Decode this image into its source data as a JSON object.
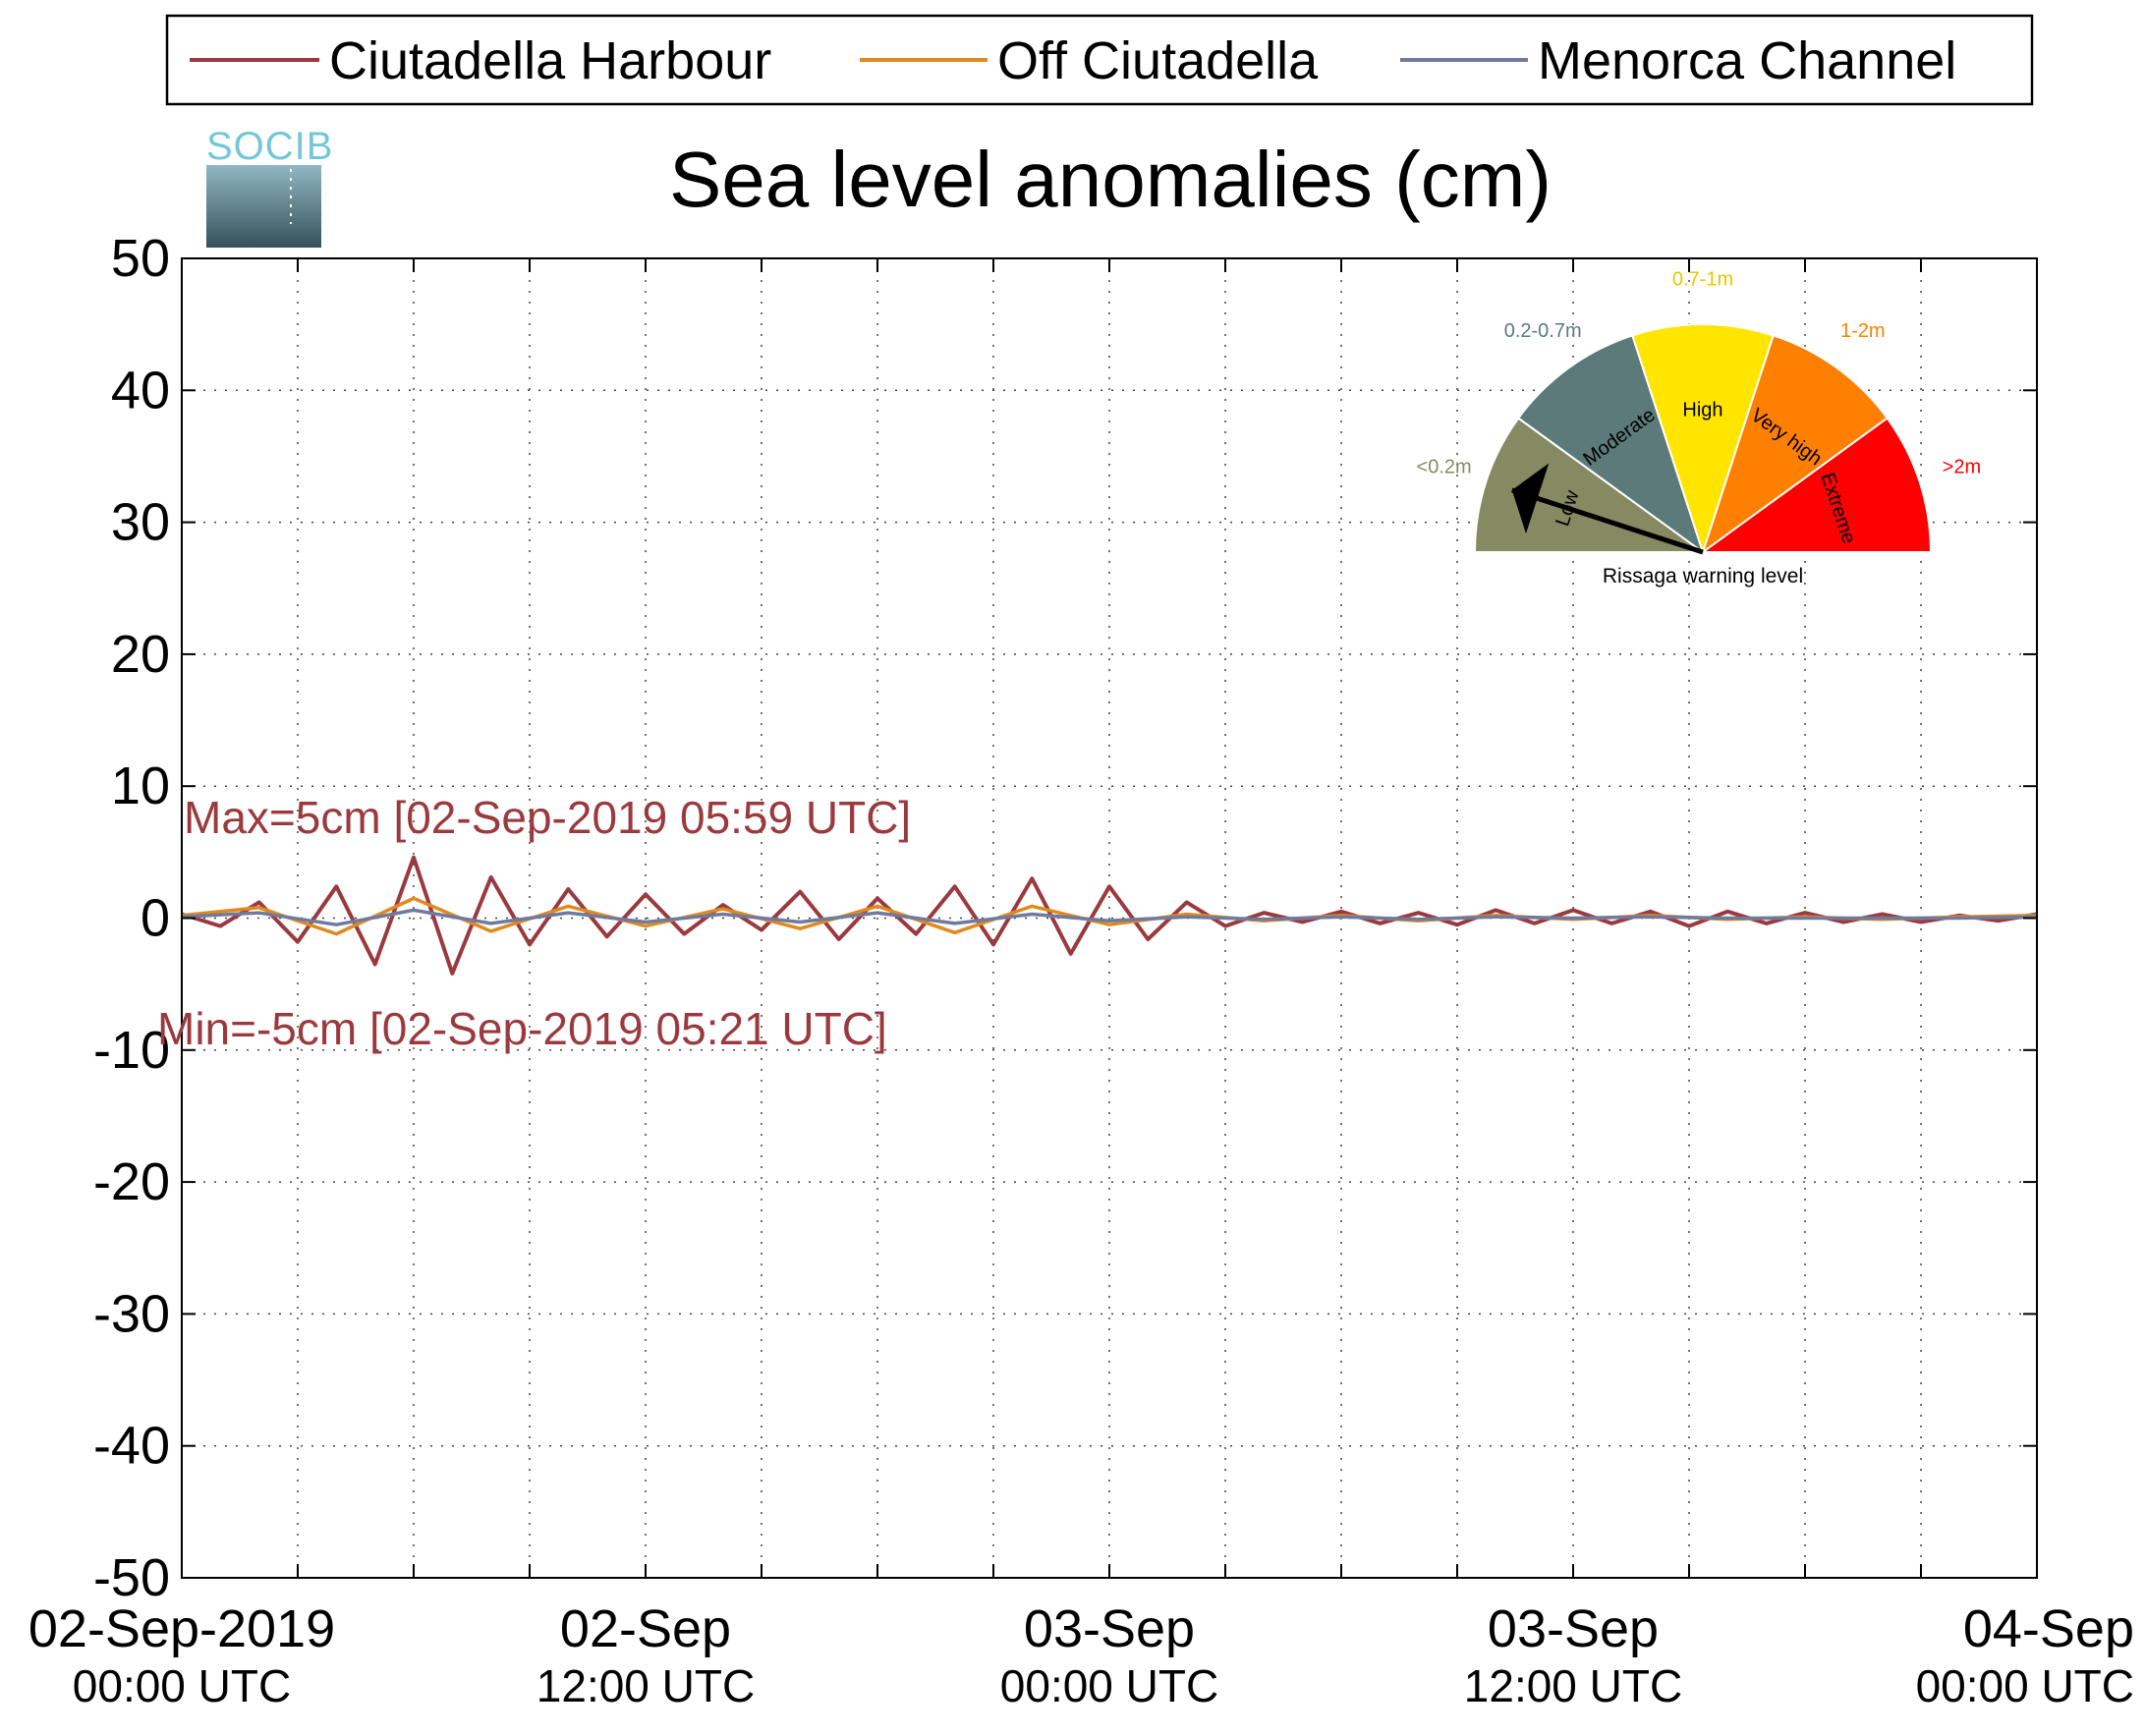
{
  "logo": {
    "text": "SOCIB"
  },
  "legend_placement": "top",
  "chart_data": {
    "type": "line",
    "title": "Sea level anomalies (cm)",
    "xlabel": "",
    "ylabel": "",
    "xlim": [
      0,
      48
    ],
    "ylim": [
      -50,
      50
    ],
    "grid": true,
    "x_units": "hours since 02-Sep-2019 00:00 UTC",
    "yticks": [
      "50",
      "40",
      "30",
      "20",
      "10",
      "0",
      "-10",
      "-20",
      "-30",
      "-40",
      "-50"
    ],
    "ytick_values": [
      50,
      40,
      30,
      20,
      10,
      0,
      -10,
      -20,
      -30,
      -40,
      -50
    ],
    "xticks": [
      {
        "x": 0,
        "line1": "02-Sep-2019",
        "line2": "00:00 UTC"
      },
      {
        "x": 12,
        "line1": "02-Sep",
        "line2": "12:00 UTC"
      },
      {
        "x": 24,
        "line1": "03-Sep",
        "line2": "00:00 UTC"
      },
      {
        "x": 36,
        "line1": "03-Sep",
        "line2": "12:00 UTC"
      },
      {
        "x": 48,
        "line1": "04-Sep",
        "line2": "00:00 UTC"
      }
    ],
    "series": [
      {
        "name": "Ciutadella Harbour",
        "color": "#9b3a3e",
        "x": [
          0,
          1,
          2,
          3,
          4,
          5,
          6,
          7,
          8,
          9,
          10,
          11,
          12,
          13,
          14,
          15,
          16,
          17,
          18,
          19,
          20,
          21,
          22,
          23,
          24,
          25,
          26,
          27,
          28,
          29,
          30,
          31,
          32,
          33,
          34,
          35,
          36,
          37,
          38,
          39,
          40,
          41,
          42,
          43,
          44,
          45,
          46,
          47,
          48
        ],
        "y": [
          0.3,
          -0.6,
          1.2,
          -1.8,
          2.4,
          -3.5,
          4.6,
          -4.2,
          3.1,
          -2.0,
          2.2,
          -1.4,
          1.8,
          -1.2,
          1.0,
          -0.9,
          2.0,
          -1.6,
          1.5,
          -1.2,
          2.4,
          -2.0,
          3.0,
          -2.7,
          2.4,
          -1.6,
          1.2,
          -0.6,
          0.4,
          -0.3,
          0.5,
          -0.4,
          0.4,
          -0.5,
          0.6,
          -0.4,
          0.6,
          -0.4,
          0.5,
          -0.6,
          0.5,
          -0.4,
          0.4,
          -0.3,
          0.3,
          -0.3,
          0.2,
          -0.2,
          0.3
        ]
      },
      {
        "name": "Off Ciutadella",
        "color": "#e08a1e",
        "x": [
          0,
          2,
          4,
          6,
          8,
          10,
          12,
          14,
          16,
          18,
          20,
          22,
          24,
          26,
          28,
          30,
          32,
          34,
          36,
          38,
          40,
          42,
          44,
          46,
          48
        ],
        "y": [
          0.2,
          0.8,
          -1.2,
          1.5,
          -1.0,
          0.9,
          -0.6,
          0.7,
          -0.8,
          0.9,
          -1.1,
          0.9,
          -0.5,
          0.3,
          -0.2,
          0.2,
          -0.2,
          0.2,
          -0.1,
          0.2,
          -0.1,
          0.1,
          -0.1,
          0.1,
          0.2
        ]
      },
      {
        "name": "Menorca Channel",
        "color": "#707a9e",
        "x": [
          0,
          2,
          4,
          6,
          8,
          10,
          12,
          14,
          16,
          18,
          20,
          22,
          24,
          26,
          28,
          30,
          32,
          34,
          36,
          38,
          40,
          42,
          44,
          46,
          48
        ],
        "y": [
          0.1,
          0.4,
          -0.5,
          0.6,
          -0.4,
          0.4,
          -0.3,
          0.3,
          -0.3,
          0.4,
          -0.4,
          0.3,
          -0.2,
          0.1,
          -0.1,
          0.1,
          -0.1,
          0.1,
          0.0,
          0.1,
          0.0,
          0.0,
          0.0,
          0.0,
          0.1
        ]
      }
    ],
    "annotations": {
      "max_label": "Max=5cm [02-Sep-2019 05:59 UTC]",
      "min_label": "Min=-5cm [02-Sep-2019 05:21 UTC]",
      "color": "#9b3a3e"
    }
  },
  "gauge": {
    "caption": "Rissaga warning level",
    "needle_level": "Low",
    "segments": [
      {
        "name": "Low",
        "range": "<0.2m",
        "color": "#858a63",
        "label_color": "#858a63"
      },
      {
        "name": "Moderate",
        "range": "0.2-0.7m",
        "color": "#5c7a7a",
        "label_color": "#5c7a7a"
      },
      {
        "name": "High",
        "range": "0.7-1m",
        "color": "#ffe500",
        "label_color": "#e6c800"
      },
      {
        "name": "Very high",
        "range": "1-2m",
        "color": "#ff8000",
        "label_color": "#ff8000"
      },
      {
        "name": "Extreme",
        "range": ">2m",
        "color": "#ff0000",
        "label_color": "#ff0000"
      }
    ]
  }
}
